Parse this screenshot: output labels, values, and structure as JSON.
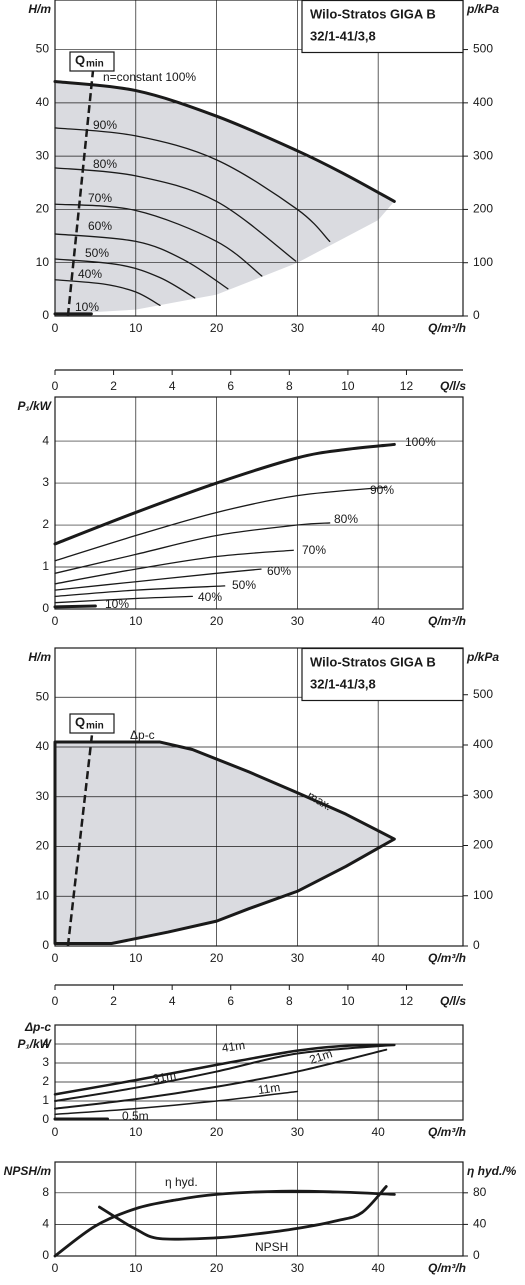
{
  "chart_data": [
    {
      "type": "line",
      "title": "Wilo-Stratos GIGA B",
      "subtitle": "32/1-41/3,8",
      "xlabel": "Q/m³/h",
      "ylabel": "H/m",
      "y2label": "p/kPa",
      "xlim": [
        0,
        50.5
      ],
      "xticks": [
        0,
        10,
        20,
        30,
        40
      ],
      "ylim": [
        0,
        59.3
      ],
      "yticks": [
        0,
        10,
        20,
        30,
        40,
        50
      ],
      "y2lim": [
        0,
        593
      ],
      "y2ticks": [
        0,
        100,
        200,
        300,
        400,
        500
      ],
      "grid": true,
      "area": {
        "color": "#dadbe0",
        "outline": false,
        "x": [
          0,
          10,
          20,
          30,
          42,
          40,
          30,
          20,
          10,
          0
        ],
        "values": [
          44,
          42.3,
          37.5,
          31,
          21.5,
          18,
          10,
          4,
          1.2,
          0.3
        ]
      },
      "qmin": {
        "label": "Q",
        "sub": "min",
        "x": [
          1.6,
          4.7
        ],
        "values": [
          0,
          46
        ]
      },
      "series": [
        {
          "name": "n=constant 100%",
          "color": "#1a1a1a",
          "x": [
            0,
            10,
            20,
            30,
            36,
            42
          ],
          "values": [
            44,
            42.3,
            37.5,
            31,
            26.5,
            21.5
          ]
        },
        {
          "name": "90%",
          "color": "#1a1a1a",
          "x": [
            0,
            10,
            20,
            30,
            34
          ],
          "values": [
            35.3,
            33.8,
            29.3,
            20,
            14
          ]
        },
        {
          "name": "80%",
          "color": "#1a1a1a",
          "x": [
            0,
            10,
            20,
            29.8
          ],
          "values": [
            27.8,
            26.3,
            21.5,
            10.3
          ]
        },
        {
          "name": "70%",
          "color": "#1a1a1a",
          "x": [
            0,
            10,
            20,
            25.6
          ],
          "values": [
            21,
            19.8,
            14,
            7.5
          ]
        },
        {
          "name": "60%",
          "color": "#1a1a1a",
          "x": [
            0,
            10,
            16,
            21.4
          ],
          "values": [
            15.4,
            14,
            10.5,
            5.1
          ]
        },
        {
          "name": "50%",
          "color": "#1a1a1a",
          "x": [
            0,
            8,
            13,
            17.3
          ],
          "values": [
            10.7,
            9.6,
            7.2,
            3.4
          ]
        },
        {
          "name": "40%",
          "color": "#1a1a1a",
          "x": [
            0,
            6,
            10,
            13
          ],
          "values": [
            6.8,
            6,
            4.5,
            2
          ]
        },
        {
          "name": "10%",
          "color": "#1a1a1a",
          "x": [
            0,
            4.5
          ],
          "values": [
            0.4,
            0.4
          ]
        }
      ]
    },
    {
      "type": "axis",
      "xlabel": "Q/l/s",
      "xlim": [
        0,
        13.93
      ],
      "xticks": [
        0,
        2,
        4,
        6,
        8,
        10,
        12
      ]
    },
    {
      "type": "line",
      "xlabel": "Q/m³/h",
      "ylabel": "P₁/kW",
      "xlim": [
        0,
        50.5
      ],
      "xticks": [
        0,
        10,
        20,
        30,
        40
      ],
      "ylim": [
        0,
        5.05
      ],
      "yticks": [
        0,
        1,
        2,
        3,
        4
      ],
      "grid": true,
      "series": [
        {
          "name": "100%",
          "color": "#1a1a1a",
          "x": [
            0,
            10,
            20,
            30,
            36,
            42
          ],
          "values": [
            1.55,
            2.3,
            3.0,
            3.6,
            3.8,
            3.92
          ]
        },
        {
          "name": "90%",
          "color": "#1a1a1a",
          "x": [
            0,
            10,
            20,
            30,
            41
          ],
          "values": [
            1.15,
            1.75,
            2.3,
            2.7,
            2.9
          ]
        },
        {
          "name": "80%",
          "color": "#1a1a1a",
          "x": [
            0,
            10,
            20,
            30,
            34
          ],
          "values": [
            0.85,
            1.3,
            1.75,
            2.0,
            2.05
          ]
        },
        {
          "name": "70%",
          "color": "#1a1a1a",
          "x": [
            0,
            10,
            20,
            29.5
          ],
          "values": [
            0.6,
            0.95,
            1.25,
            1.4
          ]
        },
        {
          "name": "60%",
          "color": "#1a1a1a",
          "x": [
            0,
            10,
            20,
            25.5
          ],
          "values": [
            0.45,
            0.65,
            0.85,
            0.95
          ]
        },
        {
          "name": "50%",
          "color": "#1a1a1a",
          "x": [
            0,
            10,
            21
          ],
          "values": [
            0.3,
            0.45,
            0.55
          ]
        },
        {
          "name": "40%",
          "color": "#1a1a1a",
          "x": [
            0,
            10,
            17
          ],
          "values": [
            0.15,
            0.25,
            0.3
          ]
        },
        {
          "name": "10%",
          "color": "#1a1a1a",
          "x": [
            0,
            5
          ],
          "values": [
            0.05,
            0.07
          ]
        }
      ]
    },
    {
      "type": "line",
      "title": "Wilo-Stratos GIGA B",
      "subtitle": "32/1-41/3,8",
      "xlabel": "Q/m³/h",
      "ylabel": "H/m",
      "y2label": "p/kPa",
      "xlim": [
        0,
        50.5
      ],
      "xticks": [
        0,
        10,
        20,
        30,
        40
      ],
      "ylim": [
        0,
        59.9
      ],
      "yticks": [
        0,
        10,
        20,
        30,
        40,
        50
      ],
      "y2lim": [
        0,
        593
      ],
      "y2ticks": [
        0,
        100,
        200,
        300,
        400,
        500
      ],
      "grid": true,
      "area": {
        "color": "#dadbe0",
        "outline": true,
        "x": [
          0,
          13,
          17,
          24,
          30,
          36,
          42,
          36,
          30,
          24,
          20,
          14,
          7,
          0
        ],
        "values": [
          41,
          41,
          39.5,
          35,
          30.8,
          26.5,
          21.5,
          16,
          11,
          7.5,
          5,
          2.8,
          0.5,
          0.5
        ]
      },
      "qmin": {
        "label": "Q",
        "sub": "min",
        "x": [
          1.6,
          4.6
        ],
        "values": [
          0,
          42.8
        ]
      },
      "annotations": [
        "Δp-c",
        "max."
      ],
      "series": []
    },
    {
      "type": "axis",
      "xlabel": "Q/l/s",
      "xlim": [
        0,
        13.93
      ],
      "xticks": [
        0,
        2,
        4,
        6,
        8,
        10,
        12
      ]
    },
    {
      "type": "line",
      "xlabel": "Q/m³/h",
      "ylabel": [
        "Δp-c",
        "P₁/kW"
      ],
      "xlim": [
        0,
        50.5
      ],
      "xticks": [
        0,
        10,
        20,
        30,
        40
      ],
      "ylim": [
        0,
        5.0
      ],
      "yticks": [
        0,
        1,
        2,
        3,
        4
      ],
      "grid": true,
      "series": [
        {
          "name": "41m",
          "color": "#1a1a1a",
          "x": [
            0,
            10,
            20,
            30,
            36,
            42
          ],
          "values": [
            1.35,
            2.1,
            2.9,
            3.65,
            3.9,
            3.95
          ]
        },
        {
          "name": "31m",
          "color": "#1a1a1a",
          "x": [
            0,
            10,
            20,
            30,
            42
          ],
          "values": [
            1.0,
            1.7,
            2.55,
            3.5,
            3.95
          ]
        },
        {
          "name": "21m",
          "color": "#1a1a1a",
          "x": [
            0,
            10,
            20,
            30,
            41
          ],
          "values": [
            0.6,
            1.1,
            1.75,
            2.55,
            3.7
          ]
        },
        {
          "name": "11m",
          "color": "#1a1a1a",
          "x": [
            0,
            10,
            20,
            30
          ],
          "values": [
            0.3,
            0.6,
            1.0,
            1.5
          ]
        },
        {
          "name": "0.5m",
          "color": "#1a1a1a",
          "x": [
            0,
            6.5
          ],
          "values": [
            0.05,
            0.05
          ]
        }
      ]
    },
    {
      "type": "line",
      "xlabel": "Q/m³/h",
      "ylabel": "NPSH/m",
      "y2label": "η hyd./%",
      "xlim": [
        0,
        50.5
      ],
      "xticks": [
        0,
        10,
        20,
        30,
        40
      ],
      "ylim": [
        0,
        11.9
      ],
      "yticks": [
        0,
        4,
        8
      ],
      "y2lim": [
        0,
        119
      ],
      "y2ticks": [
        0,
        40,
        80
      ],
      "grid": true,
      "series": [
        {
          "name": "η hyd.",
          "color": "#1a1a1a",
          "axis": "y2",
          "x": [
            0,
            5,
            10,
            15,
            20,
            28,
            35,
            42
          ],
          "values": [
            0,
            38,
            60,
            71,
            78,
            82,
            81,
            78
          ]
        },
        {
          "name": "NPSH",
          "color": "#1a1a1a",
          "x": [
            5.5,
            8,
            10,
            13,
            20,
            25,
            30,
            35,
            38,
            41
          ],
          "values": [
            6.2,
            4.6,
            3.4,
            2.2,
            2.3,
            2.8,
            3.5,
            4.5,
            5.5,
            8.8
          ]
        }
      ]
    }
  ]
}
